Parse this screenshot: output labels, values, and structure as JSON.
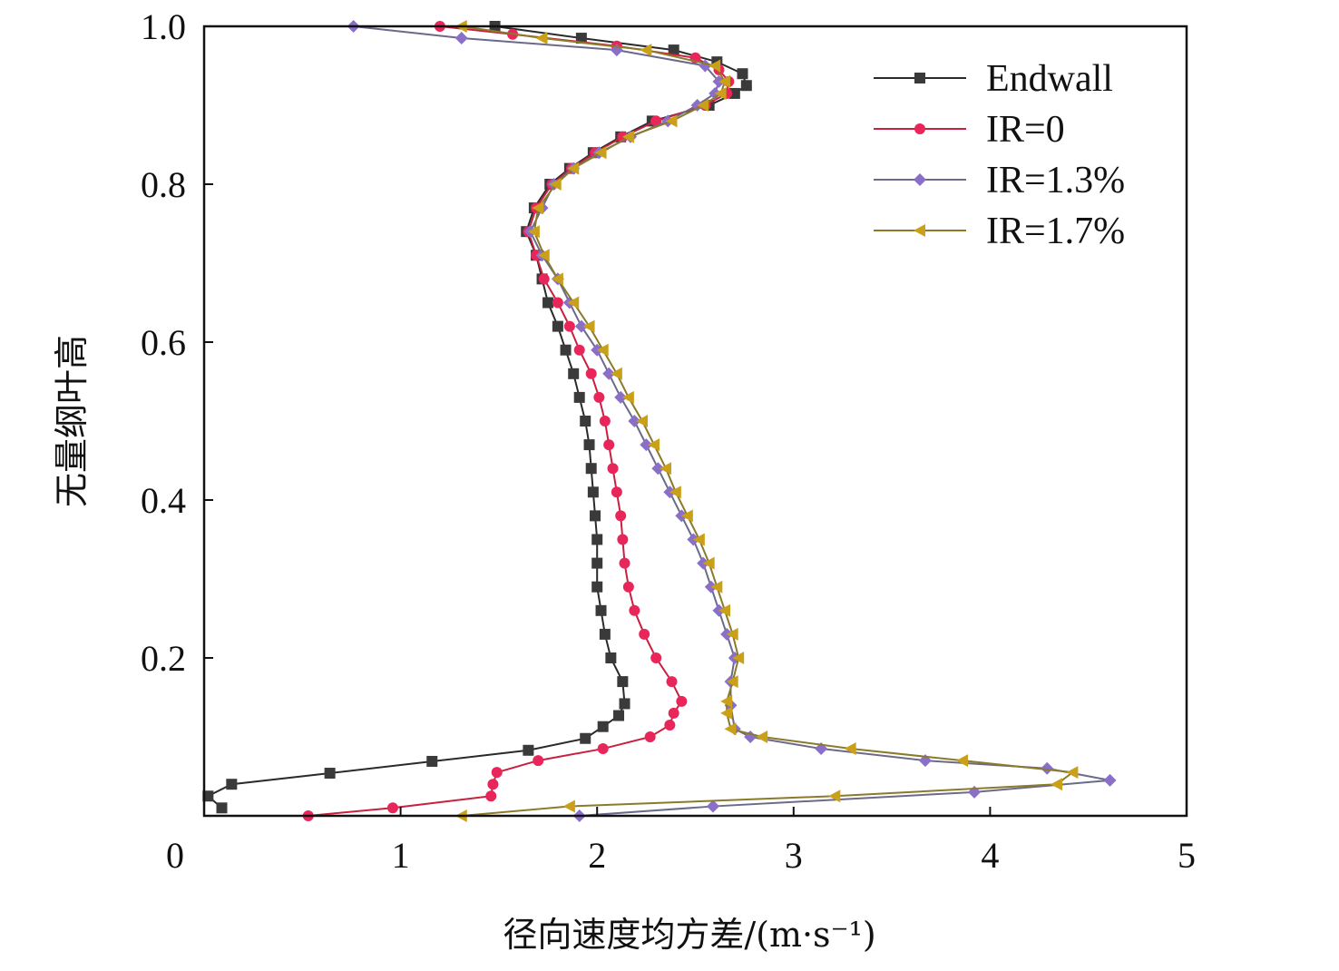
{
  "chart_data": {
    "type": "line",
    "title": "",
    "xlabel": "径向速度均方差/(m·s⁻¹)",
    "ylabel": "无量纲叶高",
    "xlim": [
      0,
      5
    ],
    "ylim": [
      0,
      1
    ],
    "xticks": [
      "0",
      "1",
      "2",
      "3",
      "4",
      "5"
    ],
    "yticks": [
      "0.2",
      "0.4",
      "0.6",
      "0.8",
      "1.0"
    ],
    "ytick_values": [
      0.2,
      0.4,
      0.6,
      0.8,
      1.0
    ],
    "xtick_values": [
      0,
      1,
      2,
      3,
      4,
      5
    ],
    "grid": false,
    "legend_position": "top-right",
    "series": [
      {
        "name": "Endwall",
        "color": "#3a3a3a",
        "line": "#2a2a2a",
        "marker": "square",
        "y": [
          0.01,
          0.025,
          0.04,
          0.054,
          0.069,
          0.083,
          0.098,
          0.113,
          0.127,
          0.142,
          0.17,
          0.2,
          0.23,
          0.26,
          0.29,
          0.32,
          0.35,
          0.38,
          0.41,
          0.44,
          0.47,
          0.5,
          0.53,
          0.56,
          0.59,
          0.62,
          0.65,
          0.68,
          0.71,
          0.74,
          0.77,
          0.8,
          0.82,
          0.84,
          0.86,
          0.88,
          0.9,
          0.915,
          0.925,
          0.94,
          0.955,
          0.97,
          0.985,
          1.0
        ],
        "x": [
          0.09,
          0.02,
          0.14,
          0.64,
          1.16,
          1.65,
          1.94,
          2.03,
          2.11,
          2.14,
          2.13,
          2.07,
          2.04,
          2.02,
          2.0,
          2.0,
          2.0,
          1.99,
          1.98,
          1.97,
          1.96,
          1.94,
          1.91,
          1.88,
          1.84,
          1.8,
          1.75,
          1.72,
          1.69,
          1.64,
          1.68,
          1.76,
          1.86,
          1.98,
          2.12,
          2.28,
          2.57,
          2.7,
          2.76,
          2.74,
          2.61,
          2.39,
          1.92,
          1.48
        ]
      },
      {
        "name": "IR=0",
        "color": "#e8265a",
        "line": "#c8203f",
        "marker": "circle",
        "y": [
          0.0,
          0.01,
          0.025,
          0.04,
          0.055,
          0.07,
          0.085,
          0.1,
          0.115,
          0.13,
          0.145,
          0.17,
          0.2,
          0.23,
          0.26,
          0.29,
          0.32,
          0.35,
          0.38,
          0.41,
          0.44,
          0.47,
          0.5,
          0.53,
          0.56,
          0.59,
          0.62,
          0.65,
          0.68,
          0.71,
          0.74,
          0.77,
          0.8,
          0.82,
          0.84,
          0.86,
          0.88,
          0.9,
          0.915,
          0.93,
          0.945,
          0.96,
          0.975,
          0.99,
          1.0
        ],
        "x": [
          0.53,
          0.96,
          1.46,
          1.47,
          1.49,
          1.7,
          2.03,
          2.27,
          2.37,
          2.39,
          2.43,
          2.38,
          2.3,
          2.24,
          2.19,
          2.16,
          2.14,
          2.13,
          2.12,
          2.1,
          2.08,
          2.06,
          2.04,
          2.01,
          1.97,
          1.91,
          1.86,
          1.8,
          1.73,
          1.69,
          1.65,
          1.69,
          1.77,
          1.87,
          1.99,
          2.13,
          2.3,
          2.55,
          2.66,
          2.67,
          2.62,
          2.5,
          2.1,
          1.57,
          1.2
        ]
      },
      {
        "name": "IR=1.3%",
        "color": "#8a6fc9",
        "line": "#6a6a8a",
        "marker": "diamond",
        "y": [
          0.0,
          0.012,
          0.03,
          0.045,
          0.06,
          0.07,
          0.085,
          0.1,
          0.11,
          0.14,
          0.17,
          0.2,
          0.23,
          0.26,
          0.29,
          0.32,
          0.35,
          0.38,
          0.41,
          0.44,
          0.47,
          0.5,
          0.53,
          0.56,
          0.59,
          0.62,
          0.65,
          0.68,
          0.71,
          0.74,
          0.77,
          0.8,
          0.82,
          0.84,
          0.86,
          0.88,
          0.9,
          0.915,
          0.93,
          0.95,
          0.97,
          0.985,
          1.0
        ],
        "x": [
          1.91,
          2.59,
          3.92,
          4.61,
          4.29,
          3.67,
          3.14,
          2.78,
          2.7,
          2.68,
          2.68,
          2.7,
          2.66,
          2.62,
          2.58,
          2.54,
          2.49,
          2.43,
          2.37,
          2.31,
          2.25,
          2.19,
          2.12,
          2.06,
          2.0,
          1.92,
          1.86,
          1.8,
          1.72,
          1.66,
          1.72,
          1.78,
          1.88,
          2.01,
          2.17,
          2.36,
          2.51,
          2.6,
          2.62,
          2.55,
          2.1,
          1.31,
          0.76
        ]
      },
      {
        "name": "IR=1.7%",
        "color": "#c9a017",
        "line": "#8a7a2a",
        "marker": "triangle-left",
        "y": [
          0.0,
          0.012,
          0.025,
          0.04,
          0.055,
          0.07,
          0.085,
          0.1,
          0.11,
          0.13,
          0.145,
          0.17,
          0.2,
          0.23,
          0.26,
          0.29,
          0.32,
          0.35,
          0.38,
          0.41,
          0.44,
          0.47,
          0.5,
          0.53,
          0.56,
          0.59,
          0.62,
          0.65,
          0.68,
          0.71,
          0.74,
          0.77,
          0.8,
          0.82,
          0.84,
          0.86,
          0.88,
          0.9,
          0.915,
          0.93,
          0.95,
          0.97,
          0.985,
          1.0
        ],
        "x": [
          1.31,
          1.86,
          3.21,
          4.34,
          4.42,
          3.86,
          3.29,
          2.84,
          2.68,
          2.66,
          2.66,
          2.69,
          2.72,
          2.69,
          2.65,
          2.61,
          2.57,
          2.52,
          2.46,
          2.4,
          2.35,
          2.29,
          2.23,
          2.16,
          2.1,
          2.03,
          1.96,
          1.88,
          1.8,
          1.73,
          1.68,
          1.7,
          1.79,
          1.88,
          2.02,
          2.16,
          2.38,
          2.54,
          2.63,
          2.65,
          2.6,
          2.25,
          1.72,
          1.31
        ]
      }
    ]
  }
}
